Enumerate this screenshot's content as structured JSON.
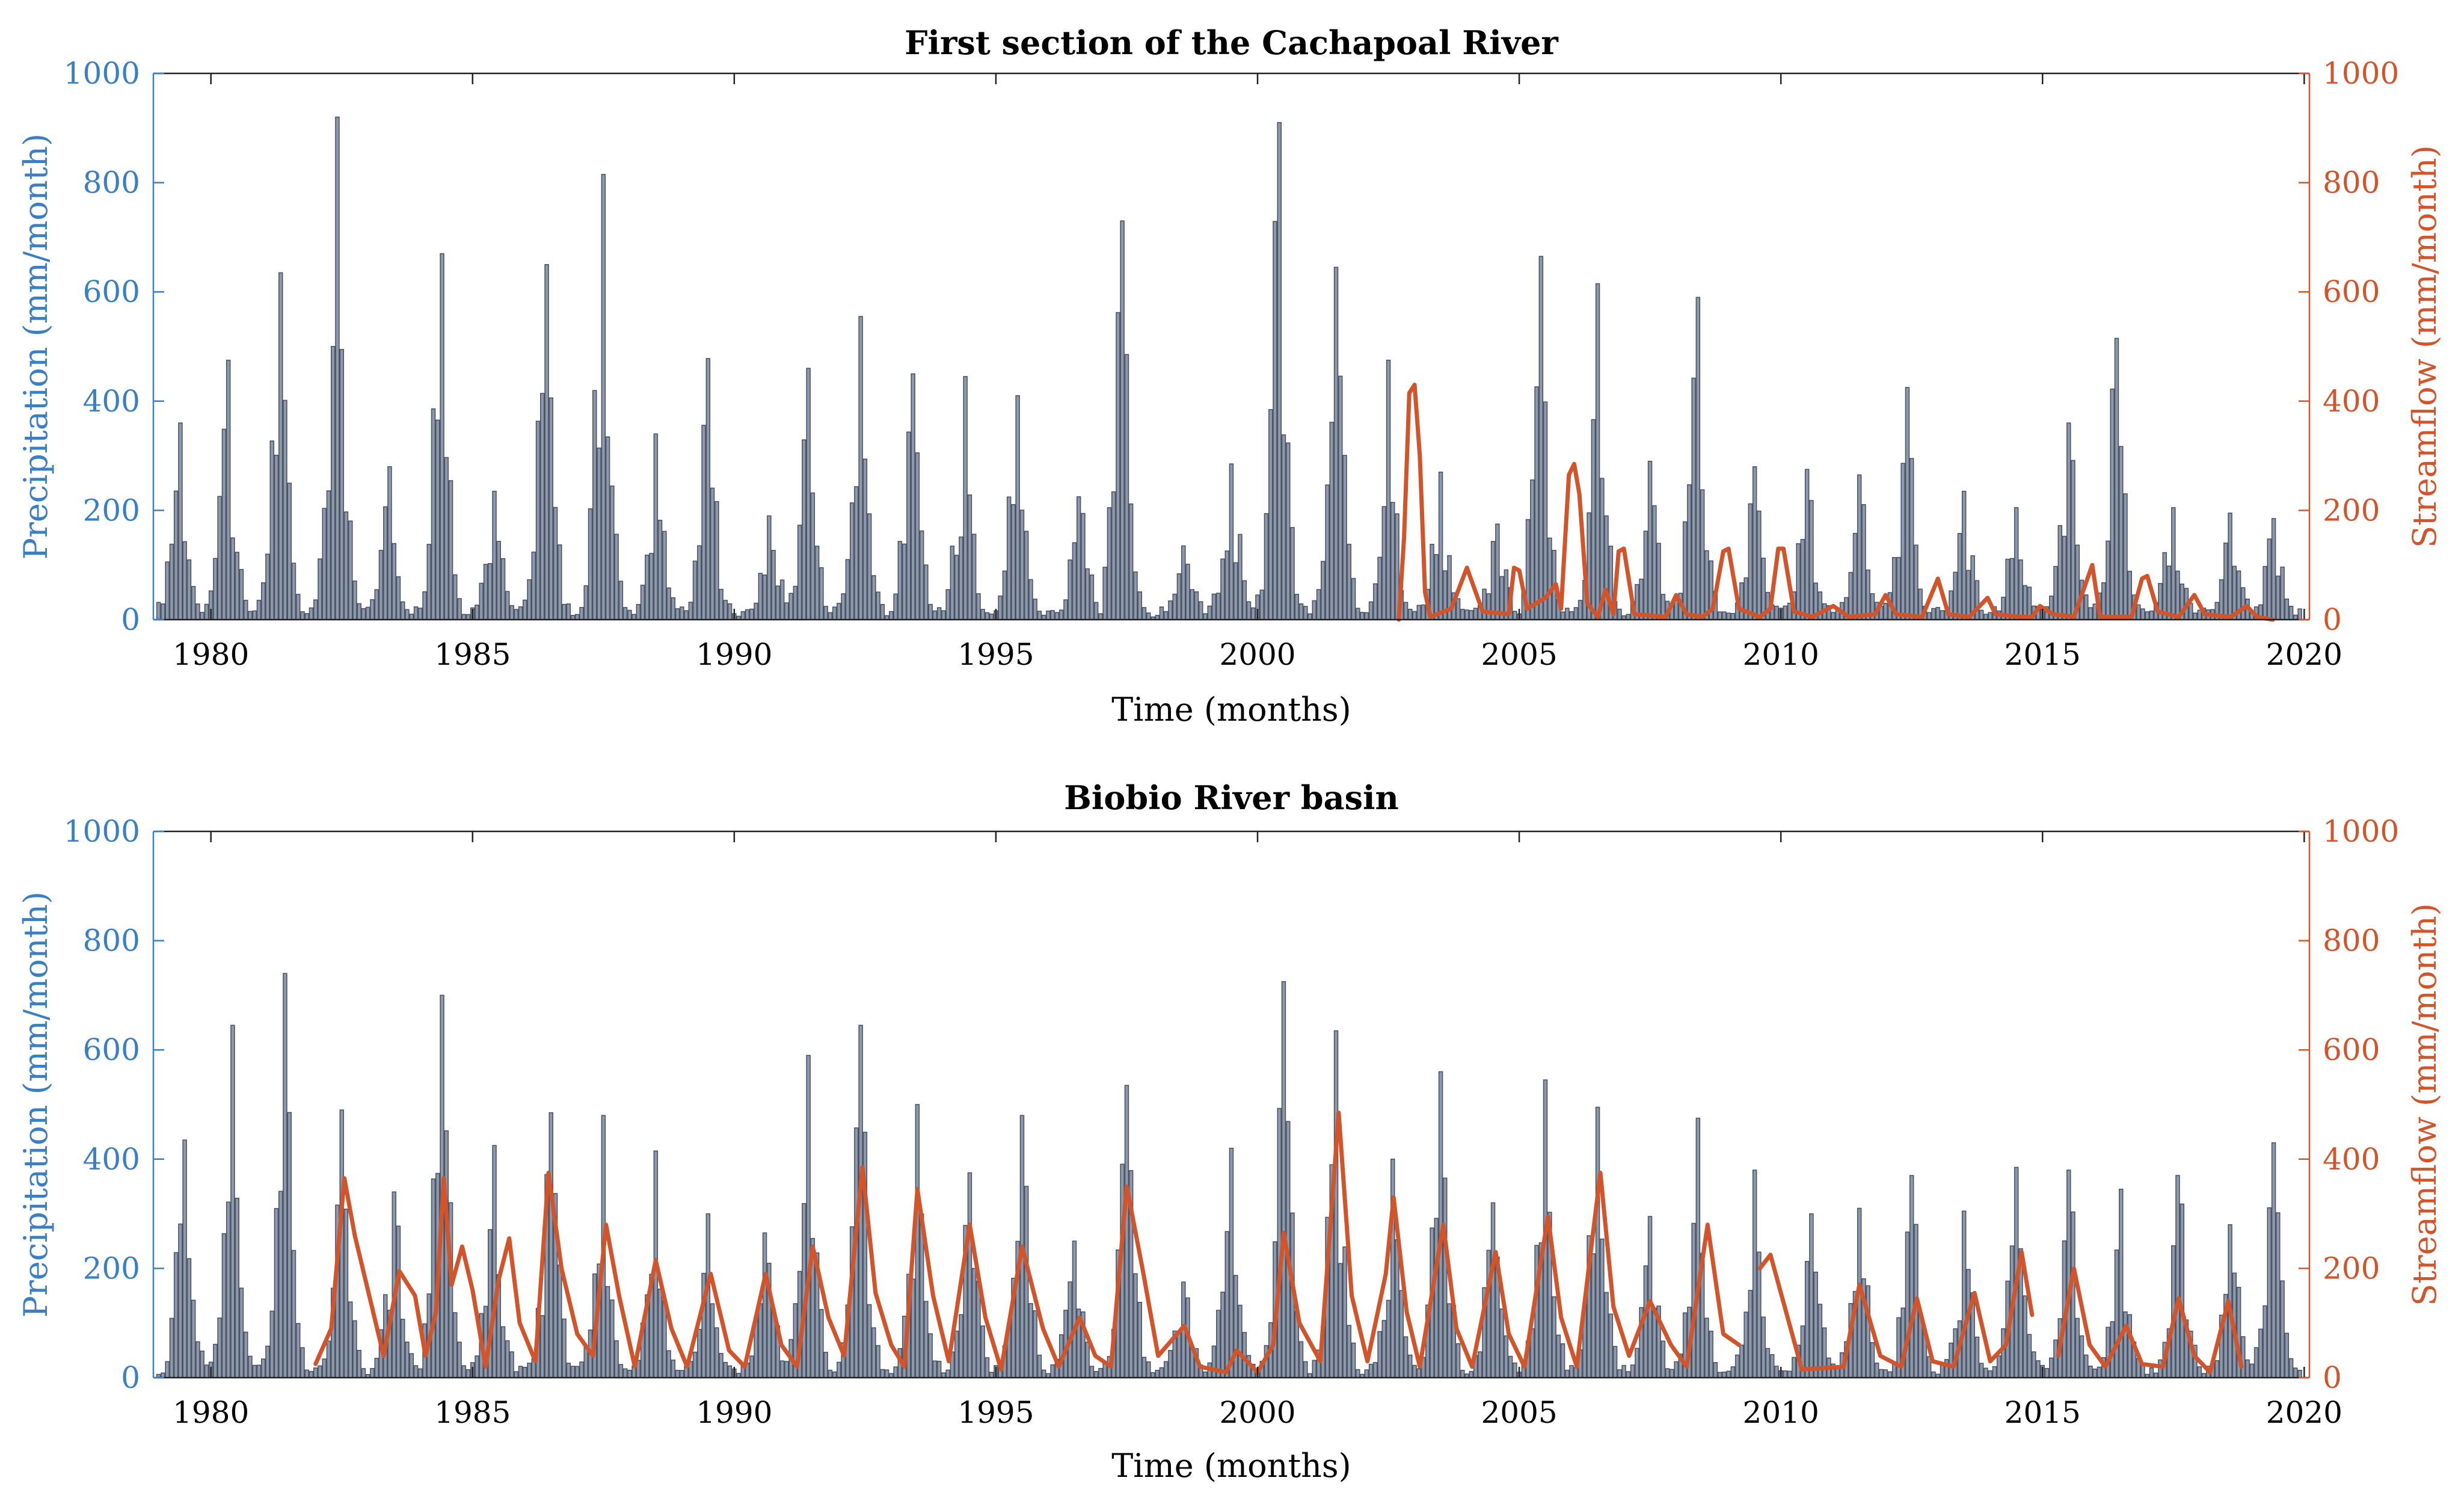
{
  "colors": {
    "precip_axis": "#3a7fc4",
    "streamflow_axis": "#d2542a",
    "bar_fill": "#8e99ab",
    "bar_edge": "#4b5566",
    "streamflow_line": "#d2542a",
    "axis": "#222222"
  },
  "chart_data": [
    {
      "type": "bar",
      "title": "First section of the Cachapoal River",
      "xlabel": "Time (months)",
      "ylabel": "Precipitation (mm/month)",
      "y2label": "Streamflow (mm/month)",
      "xlim": [
        1978.9,
        2020.1
      ],
      "ylim": [
        0,
        1000
      ],
      "y2lim": [
        0,
        1000
      ],
      "xticks": [
        1980,
        1985,
        1990,
        1995,
        2000,
        2005,
        2010,
        2015,
        2020
      ],
      "xtick_labels": [
        "1980",
        "1985",
        "1990",
        "1995",
        "2000",
        "2005",
        "2010",
        "2015",
        "2020"
      ],
      "yticks": [
        0,
        200,
        400,
        600,
        800,
        1000
      ],
      "ytick_labels": [
        "0",
        "200",
        "400",
        "600",
        "800",
        "1000"
      ],
      "y2ticks": [
        0,
        200,
        400,
        600,
        800,
        1000
      ],
      "y2tick_labels": [
        "0",
        "200",
        "400",
        "600",
        "800",
        "1000"
      ],
      "precip_start": 1979.0,
      "precip_end": 2020.0,
      "precip_peaks": [
        {
          "t": 1979.4,
          "v": 360
        },
        {
          "t": 1980.3,
          "v": 475
        },
        {
          "t": 1981.3,
          "v": 635
        },
        {
          "t": 1982.4,
          "v": 920
        },
        {
          "t": 1983.4,
          "v": 280
        },
        {
          "t": 1984.4,
          "v": 670
        },
        {
          "t": 1985.4,
          "v": 235
        },
        {
          "t": 1986.4,
          "v": 650
        },
        {
          "t": 1987.5,
          "v": 815
        },
        {
          "t": 1988.5,
          "v": 340
        },
        {
          "t": 1989.5,
          "v": 478
        },
        {
          "t": 1990.7,
          "v": 190
        },
        {
          "t": 1991.4,
          "v": 460
        },
        {
          "t": 1992.4,
          "v": 555
        },
        {
          "t": 1993.4,
          "v": 450
        },
        {
          "t": 1994.4,
          "v": 445
        },
        {
          "t": 1995.4,
          "v": 410
        },
        {
          "t": 1996.6,
          "v": 225
        },
        {
          "t": 1997.4,
          "v": 730
        },
        {
          "t": 1998.6,
          "v": 135
        },
        {
          "t": 1999.5,
          "v": 285
        },
        {
          "t": 2000.4,
          "v": 910
        },
        {
          "t": 2001.5,
          "v": 645
        },
        {
          "t": 2002.5,
          "v": 475
        },
        {
          "t": 2003.5,
          "v": 270
        },
        {
          "t": 2004.6,
          "v": 175
        },
        {
          "t": 2005.4,
          "v": 665
        },
        {
          "t": 2006.5,
          "v": 615
        },
        {
          "t": 2007.5,
          "v": 290
        },
        {
          "t": 2008.4,
          "v": 590
        },
        {
          "t": 2009.5,
          "v": 280
        },
        {
          "t": 2010.5,
          "v": 275
        },
        {
          "t": 2011.5,
          "v": 265
        },
        {
          "t": 2012.4,
          "v": 425
        },
        {
          "t": 2013.5,
          "v": 235
        },
        {
          "t": 2014.5,
          "v": 205
        },
        {
          "t": 2015.5,
          "v": 360
        },
        {
          "t": 2016.4,
          "v": 515
        },
        {
          "t": 2017.5,
          "v": 205
        },
        {
          "t": 2018.6,
          "v": 195
        },
        {
          "t": 2019.4,
          "v": 185
        }
      ],
      "streamflow": [
        {
          "x": 2002.7,
          "y": 0
        },
        {
          "x": 2002.8,
          "y": 150
        },
        {
          "x": 2002.9,
          "y": 415
        },
        {
          "x": 2003.0,
          "y": 430
        },
        {
          "x": 2003.1,
          "y": 300
        },
        {
          "x": 2003.2,
          "y": 50
        },
        {
          "x": 2003.3,
          "y": 5
        },
        {
          "x": 2003.7,
          "y": 20
        },
        {
          "x": 2004.0,
          "y": 95
        },
        {
          "x": 2004.3,
          "y": 15
        },
        {
          "x": 2004.8,
          "y": 10
        },
        {
          "x": 2004.9,
          "y": 95
        },
        {
          "x": 2005.0,
          "y": 90
        },
        {
          "x": 2005.15,
          "y": 20
        },
        {
          "x": 2005.5,
          "y": 40
        },
        {
          "x": 2005.7,
          "y": 65
        },
        {
          "x": 2005.8,
          "y": 20
        },
        {
          "x": 2005.95,
          "y": 265
        },
        {
          "x": 2006.05,
          "y": 285
        },
        {
          "x": 2006.15,
          "y": 230
        },
        {
          "x": 2006.3,
          "y": 30
        },
        {
          "x": 2006.5,
          "y": 5
        },
        {
          "x": 2006.65,
          "y": 55
        },
        {
          "x": 2006.8,
          "y": 10
        },
        {
          "x": 2006.9,
          "y": 125
        },
        {
          "x": 2007.0,
          "y": 130
        },
        {
          "x": 2007.2,
          "y": 10
        },
        {
          "x": 2007.8,
          "y": 5
        },
        {
          "x": 2008.0,
          "y": 45
        },
        {
          "x": 2008.2,
          "y": 10
        },
        {
          "x": 2008.5,
          "y": 5
        },
        {
          "x": 2008.7,
          "y": 20
        },
        {
          "x": 2008.9,
          "y": 125
        },
        {
          "x": 2009.0,
          "y": 130
        },
        {
          "x": 2009.2,
          "y": 20
        },
        {
          "x": 2009.6,
          "y": 5
        },
        {
          "x": 2009.8,
          "y": 20
        },
        {
          "x": 2009.95,
          "y": 130
        },
        {
          "x": 2010.05,
          "y": 130
        },
        {
          "x": 2010.25,
          "y": 15
        },
        {
          "x": 2010.6,
          "y": 5
        },
        {
          "x": 2011.0,
          "y": 25
        },
        {
          "x": 2011.3,
          "y": 5
        },
        {
          "x": 2011.8,
          "y": 10
        },
        {
          "x": 2012.0,
          "y": 45
        },
        {
          "x": 2012.2,
          "y": 10
        },
        {
          "x": 2012.7,
          "y": 5
        },
        {
          "x": 2013.0,
          "y": 75
        },
        {
          "x": 2013.2,
          "y": 10
        },
        {
          "x": 2013.6,
          "y": 5
        },
        {
          "x": 2013.95,
          "y": 40
        },
        {
          "x": 2014.1,
          "y": 10
        },
        {
          "x": 2014.6,
          "y": 5
        },
        {
          "x": 2014.8,
          "y": 5
        },
        {
          "x": 2014.95,
          "y": 25
        },
        {
          "x": 2015.2,
          "y": 10
        },
        {
          "x": 2015.6,
          "y": 5
        },
        {
          "x": 2015.95,
          "y": 100
        },
        {
          "x": 2016.1,
          "y": 5
        },
        {
          "x": 2016.7,
          "y": 5
        },
        {
          "x": 2016.9,
          "y": 75
        },
        {
          "x": 2017.0,
          "y": 80
        },
        {
          "x": 2017.2,
          "y": 15
        },
        {
          "x": 2017.6,
          "y": 5
        },
        {
          "x": 2017.9,
          "y": 45
        },
        {
          "x": 2018.1,
          "y": 10
        },
        {
          "x": 2018.6,
          "y": 5
        },
        {
          "x": 2018.9,
          "y": 25
        },
        {
          "x": 2019.1,
          "y": 5
        },
        {
          "x": 2019.4,
          "y": 0
        }
      ]
    },
    {
      "type": "bar",
      "title": "Biobio River basin",
      "xlabel": "Time (months)",
      "ylabel": "Precipitation (mm/month)",
      "y2label": "Streamflow (mm/month)",
      "xlim": [
        1978.9,
        2020.1
      ],
      "ylim": [
        0,
        1000
      ],
      "y2lim": [
        0,
        1000
      ],
      "xticks": [
        1980,
        1985,
        1990,
        1995,
        2000,
        2005,
        2010,
        2015,
        2020
      ],
      "xtick_labels": [
        "1980",
        "1985",
        "1990",
        "1995",
        "2000",
        "2005",
        "2010",
        "2015",
        "2020"
      ],
      "yticks": [
        0,
        200,
        400,
        600,
        800,
        1000
      ],
      "ytick_labels": [
        "0",
        "200",
        "400",
        "600",
        "800",
        "1000"
      ],
      "y2ticks": [
        0,
        200,
        400,
        600,
        800,
        1000
      ],
      "y2tick_labels": [
        "0",
        "200",
        "400",
        "600",
        "800",
        "1000"
      ],
      "precip_start": 1979.0,
      "precip_end": 2020.0,
      "precip_peaks": [
        {
          "t": 1979.5,
          "v": 435
        },
        {
          "t": 1980.4,
          "v": 645
        },
        {
          "t": 1981.4,
          "v": 740
        },
        {
          "t": 1982.5,
          "v": 490
        },
        {
          "t": 1983.5,
          "v": 340
        },
        {
          "t": 1984.4,
          "v": 700
        },
        {
          "t": 1985.4,
          "v": 425
        },
        {
          "t": 1986.5,
          "v": 485
        },
        {
          "t": 1987.5,
          "v": 480
        },
        {
          "t": 1988.5,
          "v": 415
        },
        {
          "t": 1989.5,
          "v": 300
        },
        {
          "t": 1990.6,
          "v": 265
        },
        {
          "t": 1991.4,
          "v": 590
        },
        {
          "t": 1992.4,
          "v": 645
        },
        {
          "t": 1993.5,
          "v": 500
        },
        {
          "t": 1994.5,
          "v": 375
        },
        {
          "t": 1995.5,
          "v": 480
        },
        {
          "t": 1996.5,
          "v": 250
        },
        {
          "t": 1997.5,
          "v": 535
        },
        {
          "t": 1998.6,
          "v": 175
        },
        {
          "t": 1999.5,
          "v": 420
        },
        {
          "t": 2000.5,
          "v": 725
        },
        {
          "t": 2001.5,
          "v": 635
        },
        {
          "t": 2002.6,
          "v": 400
        },
        {
          "t": 2003.5,
          "v": 560
        },
        {
          "t": 2004.5,
          "v": 320
        },
        {
          "t": 2005.5,
          "v": 545
        },
        {
          "t": 2006.5,
          "v": 495
        },
        {
          "t": 2007.5,
          "v": 295
        },
        {
          "t": 2008.4,
          "v": 475
        },
        {
          "t": 2009.5,
          "v": 380
        },
        {
          "t": 2010.6,
          "v": 300
        },
        {
          "t": 2011.5,
          "v": 310
        },
        {
          "t": 2012.5,
          "v": 370
        },
        {
          "t": 2013.5,
          "v": 305
        },
        {
          "t": 2014.5,
          "v": 385
        },
        {
          "t": 2015.5,
          "v": 380
        },
        {
          "t": 2016.5,
          "v": 345
        },
        {
          "t": 2017.6,
          "v": 370
        },
        {
          "t": 2018.6,
          "v": 280
        },
        {
          "t": 2019.4,
          "v": 430
        }
      ],
      "streamflow": [
        {
          "x": 1982.0,
          "y": 25
        },
        {
          "x": 1982.3,
          "y": 90
        },
        {
          "x": 1982.55,
          "y": 365
        },
        {
          "x": 1982.75,
          "y": 260
        },
        {
          "x": 1983.0,
          "y": 160
        },
        {
          "x": 1983.3,
          "y": 40
        },
        {
          "x": 1983.6,
          "y": 195
        },
        {
          "x": 1983.9,
          "y": 150
        },
        {
          "x": 1984.1,
          "y": 40
        },
        {
          "x": 1984.3,
          "y": 120
        },
        {
          "x": 1984.45,
          "y": 365
        },
        {
          "x": 1984.6,
          "y": 170
        },
        {
          "x": 1984.8,
          "y": 240
        },
        {
          "x": 1985.0,
          "y": 160
        },
        {
          "x": 1985.25,
          "y": 20
        },
        {
          "x": 1985.5,
          "y": 180
        },
        {
          "x": 1985.7,
          "y": 255
        },
        {
          "x": 1985.9,
          "y": 100
        },
        {
          "x": 1986.2,
          "y": 30
        },
        {
          "x": 1986.45,
          "y": 375
        },
        {
          "x": 1986.7,
          "y": 200
        },
        {
          "x": 1987.0,
          "y": 80
        },
        {
          "x": 1987.3,
          "y": 40
        },
        {
          "x": 1987.55,
          "y": 280
        },
        {
          "x": 1987.8,
          "y": 150
        },
        {
          "x": 1988.1,
          "y": 20
        },
        {
          "x": 1988.5,
          "y": 215
        },
        {
          "x": 1988.8,
          "y": 90
        },
        {
          "x": 1989.1,
          "y": 20
        },
        {
          "x": 1989.55,
          "y": 190
        },
        {
          "x": 1989.9,
          "y": 50
        },
        {
          "x": 1990.2,
          "y": 20
        },
        {
          "x": 1990.6,
          "y": 190
        },
        {
          "x": 1990.9,
          "y": 60
        },
        {
          "x": 1991.2,
          "y": 20
        },
        {
          "x": 1991.5,
          "y": 240
        },
        {
          "x": 1991.8,
          "y": 110
        },
        {
          "x": 1992.1,
          "y": 40
        },
        {
          "x": 1992.45,
          "y": 385
        },
        {
          "x": 1992.7,
          "y": 155
        },
        {
          "x": 1993.0,
          "y": 60
        },
        {
          "x": 1993.25,
          "y": 20
        },
        {
          "x": 1993.5,
          "y": 345
        },
        {
          "x": 1993.8,
          "y": 150
        },
        {
          "x": 1994.1,
          "y": 30
        },
        {
          "x": 1994.5,
          "y": 280
        },
        {
          "x": 1994.8,
          "y": 110
        },
        {
          "x": 1995.1,
          "y": 15
        },
        {
          "x": 1995.5,
          "y": 240
        },
        {
          "x": 1995.9,
          "y": 90
        },
        {
          "x": 1996.2,
          "y": 20
        },
        {
          "x": 1996.6,
          "y": 110
        },
        {
          "x": 1996.9,
          "y": 40
        },
        {
          "x": 1997.2,
          "y": 20
        },
        {
          "x": 1997.5,
          "y": 350
        },
        {
          "x": 1997.8,
          "y": 200
        },
        {
          "x": 1998.1,
          "y": 40
        },
        {
          "x": 1998.6,
          "y": 95
        },
        {
          "x": 1998.9,
          "y": 20
        },
        {
          "x": 1999.4,
          "y": 10
        },
        {
          "x": 1999.6,
          "y": 50
        },
        {
          "x": 2000.0,
          "y": 10
        },
        {
          "x": 2000.3,
          "y": 60
        },
        {
          "x": 2000.5,
          "y": 265
        },
        {
          "x": 2000.8,
          "y": 100
        },
        {
          "x": 2001.2,
          "y": 30
        },
        {
          "x": 2001.55,
          "y": 485
        },
        {
          "x": 2001.8,
          "y": 150
        },
        {
          "x": 2002.1,
          "y": 30
        },
        {
          "x": 2002.45,
          "y": 190
        },
        {
          "x": 2002.6,
          "y": 330
        },
        {
          "x": 2002.85,
          "y": 120
        },
        {
          "x": 2003.1,
          "y": 20
        },
        {
          "x": 2003.55,
          "y": 280
        },
        {
          "x": 2003.8,
          "y": 90
        },
        {
          "x": 2004.1,
          "y": 20
        },
        {
          "x": 2004.55,
          "y": 230
        },
        {
          "x": 2004.8,
          "y": 80
        },
        {
          "x": 2005.1,
          "y": 20
        },
        {
          "x": 2005.55,
          "y": 295
        },
        {
          "x": 2005.8,
          "y": 110
        },
        {
          "x": 2006.1,
          "y": 20
        },
        {
          "x": 2006.55,
          "y": 375
        },
        {
          "x": 2006.8,
          "y": 130
        },
        {
          "x": 2007.1,
          "y": 40
        },
        {
          "x": 2007.5,
          "y": 140
        },
        {
          "x": 2007.9,
          "y": 60
        },
        {
          "x": 2008.2,
          "y": 20
        },
        {
          "x": 2008.6,
          "y": 280
        },
        {
          "x": 2008.9,
          "y": 80
        },
        {
          "x": 2009.2,
          "y": 60
        },
        {
          "x": 2009.4,
          "y": null
        },
        {
          "x": 2009.6,
          "y": 200
        },
        {
          "x": 2009.8,
          "y": 225
        },
        {
          "x": 2010.1,
          "y": 120
        },
        {
          "x": 2010.4,
          "y": 15
        },
        {
          "x": 2011.2,
          "y": 20
        },
        {
          "x": 2011.5,
          "y": 170
        },
        {
          "x": 2011.9,
          "y": 40
        },
        {
          "x": 2012.3,
          "y": 20
        },
        {
          "x": 2012.6,
          "y": 145
        },
        {
          "x": 2012.9,
          "y": 30
        },
        {
          "x": 2013.3,
          "y": 20
        },
        {
          "x": 2013.7,
          "y": 155
        },
        {
          "x": 2014.0,
          "y": 30
        },
        {
          "x": 2014.3,
          "y": 60
        },
        {
          "x": 2014.6,
          "y": 230
        },
        {
          "x": 2014.8,
          "y": 115
        },
        {
          "x": 2015.0,
          "y": null
        },
        {
          "x": 2015.3,
          "y": 40
        },
        {
          "x": 2015.6,
          "y": 200
        },
        {
          "x": 2015.9,
          "y": 60
        },
        {
          "x": 2016.2,
          "y": 20
        },
        {
          "x": 2016.6,
          "y": 95
        },
        {
          "x": 2016.9,
          "y": 25
        },
        {
          "x": 2017.3,
          "y": 20
        },
        {
          "x": 2017.6,
          "y": 145
        },
        {
          "x": 2017.9,
          "y": 40
        },
        {
          "x": 2018.2,
          "y": 10
        },
        {
          "x": 2018.55,
          "y": 140
        },
        {
          "x": 2018.8,
          "y": 20
        }
      ]
    }
  ]
}
